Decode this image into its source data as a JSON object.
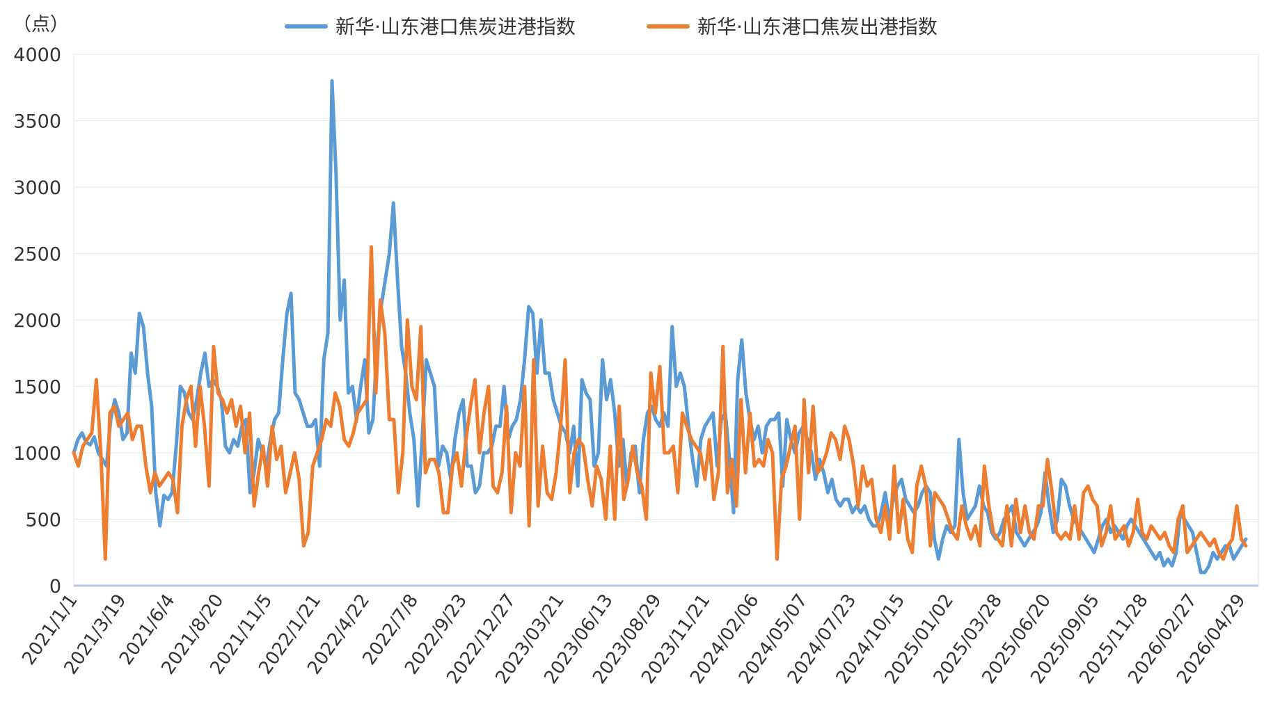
{
  "chart_data": {
    "type": "line",
    "unit": "（点）",
    "ylim": [
      0,
      4000
    ],
    "y_ticks": [
      0,
      500,
      1000,
      1500,
      2000,
      2500,
      3000,
      3500,
      4000
    ],
    "x_tick_labels": [
      "2021/1/1",
      "2021/3/19",
      "2021/6/4",
      "2021/8/20",
      "2021/11/5",
      "2022/1/21",
      "2022/4/22",
      "2022/7/8",
      "2022/9/23",
      "2022/12/27",
      "2023/03/21",
      "2023/06/13",
      "2023/08/29",
      "2023/11/21",
      "2024/02/06",
      "2024/05/07",
      "2024/07/23",
      "2024/10/15",
      "2025/01/02",
      "2025/03/28",
      "2025/06/20",
      "2025/09/05",
      "2025/11/28",
      "2026/02/27",
      "2026/04/29"
    ],
    "grid": true,
    "legend_position": "top-center",
    "series": [
      {
        "name": "新华·山东港口焦炭进港指数",
        "color": "#5b9bd5",
        "values": [
          1000,
          1100,
          1150,
          1080,
          1060,
          1120,
          1000,
          950,
          900,
          1250,
          1400,
          1300,
          1100,
          1150,
          1750,
          1600,
          2050,
          1950,
          1600,
          1350,
          700,
          450,
          680,
          650,
          700,
          1050,
          1500,
          1450,
          1300,
          1250,
          1400,
          1600,
          1750,
          1500,
          1550,
          1500,
          1400,
          1050,
          1000,
          1100,
          1050,
          1200,
          1250,
          700,
          850,
          1100,
          1000,
          900,
          1100,
          1250,
          1300,
          1700,
          2050,
          2200,
          1450,
          1400,
          1300,
          1200,
          1200,
          1250,
          900,
          1700,
          1900,
          3800,
          3100,
          2000,
          2300,
          1450,
          1500,
          1250,
          1500,
          1700,
          1150,
          1250,
          1800,
          2100,
          2300,
          2500,
          2880,
          2300,
          1800,
          1600,
          1300,
          1100,
          600,
          1100,
          1700,
          1600,
          1500,
          900,
          1050,
          1000,
          800,
          1100,
          1300,
          1400,
          900,
          900,
          700,
          750,
          1000,
          1000,
          1050,
          1200,
          1200,
          1500,
          1100,
          1200,
          1250,
          1400,
          1700,
          2100,
          2050,
          1600,
          2000,
          1600,
          1600,
          1400,
          1300,
          1200,
          1150,
          1000,
          1200,
          750,
          1550,
          1450,
          1400,
          900,
          1000,
          1700,
          1400,
          1550,
          1300,
          900,
          1100,
          750,
          1000,
          1050,
          700,
          1100,
          1300,
          1350,
          1250,
          1200,
          1300,
          1200,
          1950,
          1500,
          1600,
          1500,
          1200,
          950,
          750,
          1100,
          1200,
          1250,
          1300,
          900,
          1250,
          1300,
          950,
          550,
          1550,
          1850,
          1450,
          1250,
          1100,
          1200,
          1000,
          1200,
          1250,
          1250,
          1300,
          750,
          1250,
          1100,
          1000,
          1150,
          1200,
          1100,
          1000,
          800,
          950,
          850,
          700,
          800,
          650,
          600,
          650,
          650,
          550,
          600,
          550,
          600,
          500,
          450,
          450,
          550,
          700,
          500,
          650,
          750,
          800,
          650,
          600,
          550,
          600,
          700,
          750,
          700,
          350,
          200,
          350,
          450,
          400,
          450,
          1100,
          700,
          500,
          550,
          600,
          750,
          600,
          550,
          400,
          350,
          400,
          500,
          550,
          600,
          400,
          350,
          300,
          350,
          400,
          450,
          550,
          850,
          600,
          400,
          500,
          800,
          750,
          600,
          500,
          450,
          400,
          350,
          300,
          250,
          350,
          450,
          500,
          400,
          450,
          400,
          350,
          450,
          500,
          450,
          400,
          350,
          300,
          250,
          200,
          250,
          150,
          200,
          150,
          250,
          550,
          500,
          450,
          400,
          250,
          100,
          100,
          150,
          250,
          200,
          250,
          300,
          300,
          200,
          250,
          300,
          350
        ]
      },
      {
        "name": "新华·山东港口焦炭出港指数",
        "color": "#ed7d31",
        "values": [
          1000,
          900,
          1050,
          1100,
          1150,
          1550,
          1000,
          200,
          1300,
          1350,
          1200,
          1250,
          1300,
          1100,
          1200,
          1200,
          900,
          700,
          850,
          750,
          800,
          850,
          800,
          550,
          1200,
          1400,
          1500,
          1050,
          1500,
          1200,
          750,
          1800,
          1450,
          1400,
          1300,
          1400,
          1200,
          1350,
          1000,
          1300,
          600,
          850,
          1050,
          750,
          1200,
          950,
          1050,
          700,
          850,
          1000,
          800,
          300,
          400,
          900,
          1000,
          1100,
          1250,
          1200,
          1450,
          1350,
          1100,
          1050,
          1150,
          1300,
          1350,
          1400,
          2550,
          1450,
          2150,
          1900,
          1250,
          1250,
          700,
          1000,
          2000,
          1500,
          1400,
          1950,
          850,
          950,
          950,
          850,
          550,
          550,
          900,
          1000,
          750,
          1100,
          1350,
          1550,
          1000,
          1300,
          1500,
          750,
          700,
          850,
          1350,
          550,
          1000,
          900,
          1500,
          450,
          1700,
          600,
          1050,
          700,
          650,
          850,
          1200,
          1700,
          700,
          1000,
          1100,
          1050,
          800,
          600,
          900,
          800,
          500,
          1050,
          500,
          1350,
          650,
          800,
          1050,
          850,
          750,
          500,
          1600,
          1300,
          1650,
          1000,
          1000,
          1050,
          700,
          1300,
          1200,
          1100,
          1050,
          1000,
          800,
          1100,
          650,
          850,
          1800,
          700,
          950,
          600,
          1400,
          850,
          1300,
          900,
          950,
          900,
          1100,
          1000,
          200,
          800,
          900,
          1050,
          1200,
          500,
          1400,
          850,
          1350,
          850,
          900,
          1000,
          1150,
          1100,
          950,
          1200,
          1100,
          900,
          600,
          900,
          750,
          800,
          500,
          400,
          600,
          350,
          900,
          400,
          650,
          350,
          250,
          750,
          900,
          750,
          300,
          700,
          650,
          600,
          500,
          400,
          350,
          600,
          450,
          350,
          450,
          300,
          900,
          600,
          400,
          350,
          300,
          600,
          300,
          650,
          400,
          600,
          400,
          350,
          600,
          600,
          950,
          700,
          400,
          350,
          400,
          350,
          600,
          350,
          700,
          750,
          650,
          600,
          300,
          400,
          600,
          350,
          400,
          450,
          300,
          400,
          650,
          400,
          350,
          450,
          400,
          350,
          400,
          300,
          250,
          500,
          600,
          250,
          300,
          350,
          400,
          350,
          300,
          350,
          250,
          200,
          300,
          350,
          600,
          350,
          300
        ]
      }
    ]
  }
}
